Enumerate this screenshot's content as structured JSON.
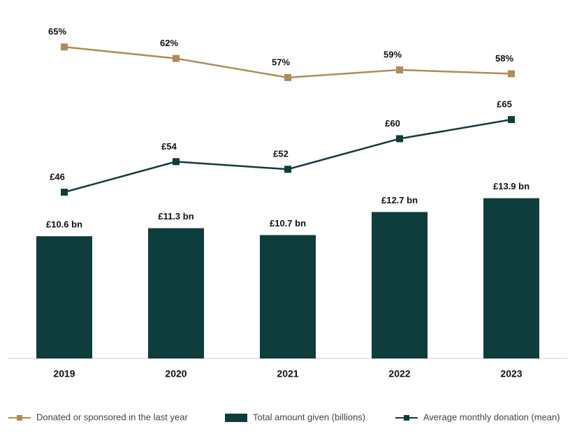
{
  "chart_data": {
    "type": "combo",
    "categories": [
      "2019",
      "2020",
      "2021",
      "2022",
      "2023"
    ],
    "series": [
      {
        "name": "Donated or sponsored in the last year",
        "type": "line",
        "color": "#b08d57",
        "values": [
          65,
          62,
          57,
          59,
          58
        ],
        "value_labels": [
          "65%",
          "62%",
          "57%",
          "59%",
          "58%"
        ],
        "ylim": [
          -16.5,
          74
        ]
      },
      {
        "name": "Total amount given (billions)",
        "type": "bar",
        "color": "#0f3d3e",
        "values": [
          10.6,
          11.3,
          10.7,
          12.7,
          13.9
        ],
        "value_labels": [
          "£10.6 bn",
          "£11.3 bn",
          "£10.7 bn",
          "£12.7 bn",
          "£13.9 bn"
        ],
        "ylim": [
          0,
          30
        ]
      },
      {
        "name": "Average monthly donation (mean)",
        "type": "line",
        "color": "#0f3d3e",
        "values": [
          46,
          54,
          52,
          60,
          65
        ],
        "value_labels": [
          "£46",
          "£54",
          "£52",
          "£60",
          "£65"
        ],
        "ylim": [
          2.5,
          93
        ]
      }
    ]
  }
}
